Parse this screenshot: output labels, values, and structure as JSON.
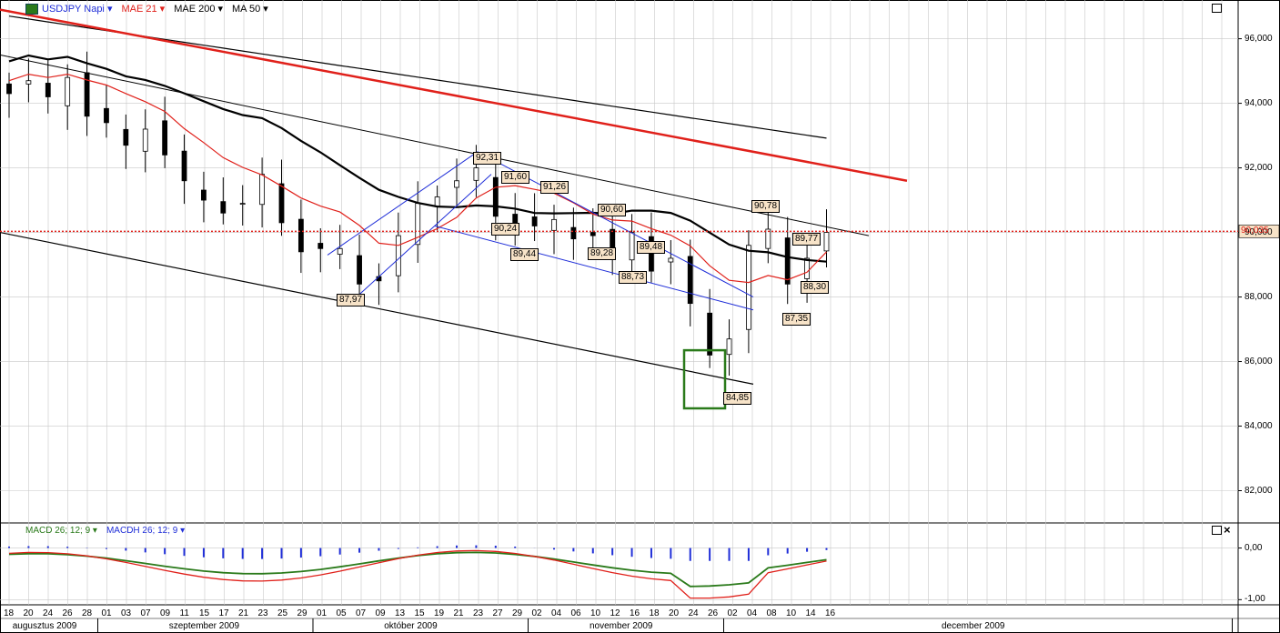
{
  "header": {
    "symbol_label": "USDJPY Napi",
    "mae21_label": "MAE 21",
    "mae200_label": "MAE 200",
    "ma50_label": "MA 50",
    "symbol_icon": "chart-icon"
  },
  "sub_panel": {
    "macd_label": "MACD 26; 12; 9",
    "macdh_label": "MACDH 26; 12; 9"
  },
  "colors": {
    "red": "#e0201a",
    "blue": "#1f2ed8",
    "green": "#2a7a1a",
    "black": "#000000",
    "price_label_bg": "#f7e3c8",
    "grid": "#c8c8c8"
  },
  "chart_data": {
    "type": "candlestick",
    "price_axis": {
      "ticks": [
        "96,000",
        "94,000",
        "92,000",
        "90,000",
        "88,000",
        "86,000",
        "84,000",
        "82,000"
      ],
      "range": [
        81.0,
        97.2
      ]
    },
    "current_price": "90,035",
    "macd_axis": {
      "ticks": [
        "0,00",
        "-1,00"
      ],
      "range": [
        -1.1,
        0.45
      ]
    },
    "x_axis": {
      "days": [
        "18",
        "20",
        "24",
        "26",
        "28",
        "01",
        "03",
        "07",
        "09",
        "11",
        "15",
        "17",
        "21",
        "23",
        "25",
        "29",
        "01",
        "05",
        "07",
        "09",
        "13",
        "15",
        "19",
        "21",
        "23",
        "27",
        "29",
        "02",
        "04",
        "06",
        "10",
        "12",
        "16",
        "18",
        "20",
        "24",
        "26",
        "02",
        "04",
        "08",
        "10",
        "14",
        "16"
      ],
      "months": [
        "augusztus 2009",
        "szeptember 2009",
        "október 2009",
        "november 2009",
        "december 2009"
      ]
    },
    "annotations": [
      "92,31",
      "91,60",
      "91,26",
      "90,60",
      "90,24",
      "89,44",
      "89,28",
      "89,48",
      "88,73",
      "87,97",
      "84,85",
      "90,78",
      "89,77",
      "88,30",
      "87,35"
    ]
  }
}
